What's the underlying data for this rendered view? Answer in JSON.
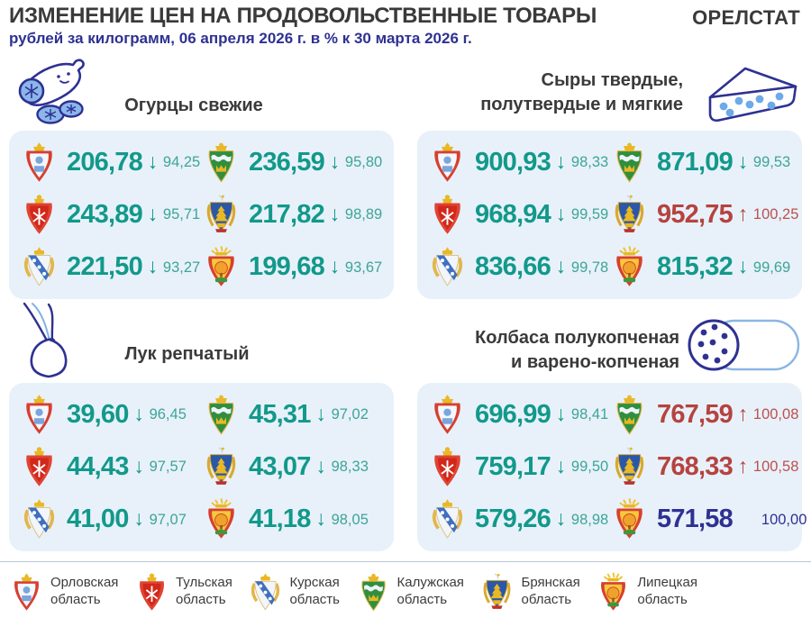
{
  "header": {
    "title": "ИЗМЕНЕНИЕ ЦЕН НА ПРОДОВОЛЬСТВЕННЫЕ ТОВАРЫ",
    "subtitle": "рублей за килограмм, 06 апреля 2026 г. в % к 30 марта 2026 г.",
    "brand": "ОРЕЛСТАТ"
  },
  "colors": {
    "decrease": "#12998b",
    "increase": "#b5433f",
    "neutral": "#2e3192",
    "panel_bg": "#e8f1fa",
    "icon_outline": "#2e3192",
    "icon_fill": "#8cb6ea"
  },
  "sections": [
    {
      "id": "cucumbers",
      "icon": "cucumber-icon",
      "title_lines": [
        "Огурцы свежие"
      ],
      "rows": [
        {
          "region": "Орловская область",
          "crest": "oryol",
          "price": "206,78",
          "dir": "down",
          "pct": "94,25"
        },
        {
          "region": "Калужская область",
          "crest": "kaluga",
          "price": "236,59",
          "dir": "down",
          "pct": "95,80"
        },
        {
          "region": "Тульская область",
          "crest": "tula",
          "price": "243,89",
          "dir": "down",
          "pct": "95,71"
        },
        {
          "region": "Брянская область",
          "crest": "bryansk",
          "price": "217,82",
          "dir": "down",
          "pct": "98,89"
        },
        {
          "region": "Курская область",
          "crest": "kursk",
          "price": "221,50",
          "dir": "down",
          "pct": "93,27"
        },
        {
          "region": "Липецкая область",
          "crest": "lipetsk",
          "price": "199,68",
          "dir": "down",
          "pct": "93,67"
        }
      ]
    },
    {
      "id": "cheese",
      "icon": "cheese-icon",
      "title_lines": [
        "Сыры твердые,",
        "полутвердые и мягкие"
      ],
      "rows": [
        {
          "region": "Орловская область",
          "crest": "oryol",
          "price": "900,93",
          "dir": "down",
          "pct": "98,33"
        },
        {
          "region": "Калужская область",
          "crest": "kaluga",
          "price": "871,09",
          "dir": "down",
          "pct": "99,53"
        },
        {
          "region": "Тульская область",
          "crest": "tula",
          "price": "968,94",
          "dir": "down",
          "pct": "99,59"
        },
        {
          "region": "Брянская область",
          "crest": "bryansk",
          "price": "952,75",
          "dir": "up",
          "pct": "100,25"
        },
        {
          "region": "Курская область",
          "crest": "kursk",
          "price": "836,66",
          "dir": "down",
          "pct": "99,78"
        },
        {
          "region": "Липецкая область",
          "crest": "lipetsk",
          "price": "815,32",
          "dir": "down",
          "pct": "99,69"
        }
      ]
    },
    {
      "id": "onions",
      "icon": "onion-icon",
      "title_lines": [
        "Лук репчатый"
      ],
      "rows": [
        {
          "region": "Орловская область",
          "crest": "oryol",
          "price": "39,60",
          "dir": "down",
          "pct": "96,45"
        },
        {
          "region": "Калужская область",
          "crest": "kaluga",
          "price": "45,31",
          "dir": "down",
          "pct": "97,02"
        },
        {
          "region": "Тульская область",
          "crest": "tula",
          "price": "44,43",
          "dir": "down",
          "pct": "97,57"
        },
        {
          "region": "Брянская область",
          "crest": "bryansk",
          "price": "43,07",
          "dir": "down",
          "pct": "98,33"
        },
        {
          "region": "Курская область",
          "crest": "kursk",
          "price": "41,00",
          "dir": "down",
          "pct": "97,07"
        },
        {
          "region": "Липецкая область",
          "crest": "lipetsk",
          "price": "41,18",
          "dir": "down",
          "pct": "98,05"
        }
      ]
    },
    {
      "id": "sausage",
      "icon": "sausage-icon",
      "title_lines": [
        "Колбаса полукопченая",
        "и варено-копченая"
      ],
      "rows": [
        {
          "region": "Орловская область",
          "crest": "oryol",
          "price": "696,99",
          "dir": "down",
          "pct": "98,41"
        },
        {
          "region": "Калужская область",
          "crest": "kaluga",
          "price": "767,59",
          "dir": "up",
          "pct": "100,08"
        },
        {
          "region": "Тульская область",
          "crest": "tula",
          "price": "759,17",
          "dir": "down",
          "pct": "99,50"
        },
        {
          "region": "Брянская область",
          "crest": "bryansk",
          "price": "768,33",
          "dir": "up",
          "pct": "100,58"
        },
        {
          "region": "Курская область",
          "crest": "kursk",
          "price": "579,26",
          "dir": "down",
          "pct": "98,98"
        },
        {
          "region": "Липецкая область",
          "crest": "lipetsk",
          "price": "571,58",
          "dir": "flat",
          "pct": "100,00"
        }
      ]
    }
  ],
  "legend": [
    {
      "crest": "oryol",
      "label_lines": [
        "Орловская",
        "область"
      ]
    },
    {
      "crest": "tula",
      "label_lines": [
        "Тульская",
        "область"
      ]
    },
    {
      "crest": "kursk",
      "label_lines": [
        "Курская",
        "область"
      ]
    },
    {
      "crest": "kaluga",
      "label_lines": [
        "Калужская",
        "область"
      ]
    },
    {
      "crest": "bryansk",
      "label_lines": [
        "Брянская",
        "область"
      ]
    },
    {
      "crest": "lipetsk",
      "label_lines": [
        "Липецкая",
        "область"
      ]
    }
  ]
}
